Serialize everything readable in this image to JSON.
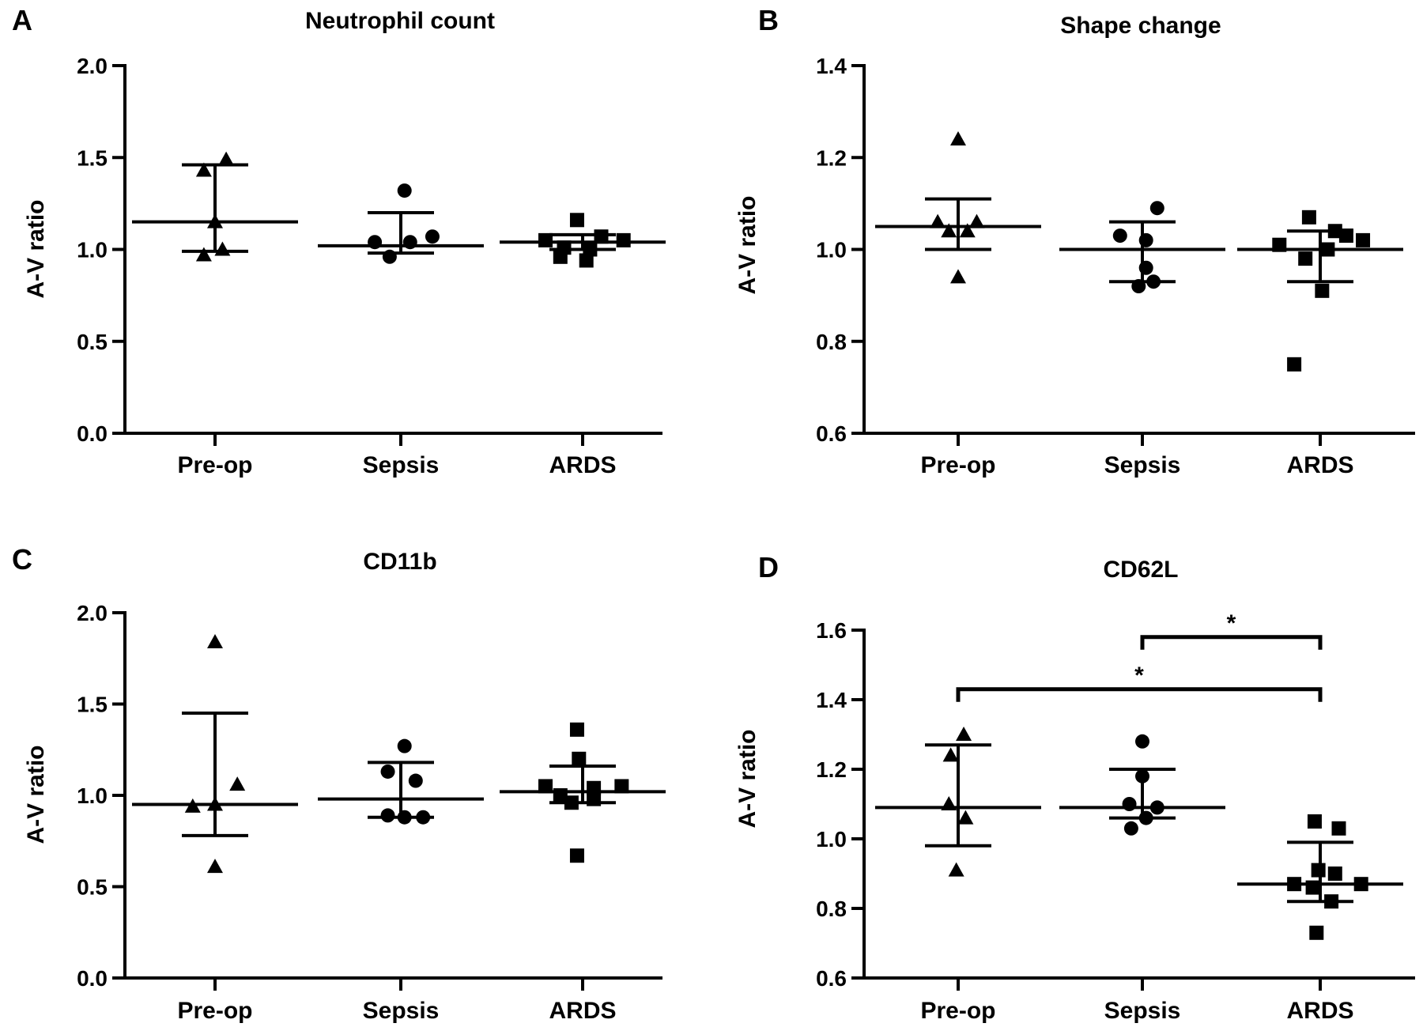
{
  "chart_data": [
    {
      "panel_label": "A",
      "title": "Neutrophil count",
      "type": "scatter",
      "ylabel": "A-V ratio",
      "ylim": [
        0.0,
        2.0
      ],
      "yticks": [
        0.0,
        0.5,
        1.0,
        1.5,
        2.0
      ],
      "ytick_labels": [
        "0.0",
        "0.5",
        "1.0",
        "1.5",
        "2.0"
      ],
      "categories": [
        "Pre-op",
        "Sepsis",
        "ARDS"
      ],
      "series": [
        {
          "category": "Pre-op",
          "marker": "triangle",
          "points": [
            {
              "dx": -0.06,
              "y": 1.43
            },
            {
              "dx": 0.06,
              "y": 1.49
            },
            {
              "dx": 0.0,
              "y": 1.15
            },
            {
              "dx": 0.04,
              "y": 1.0
            },
            {
              "dx": -0.06,
              "y": 0.97
            }
          ],
          "mean": 1.15,
          "err_low": 0.99,
          "err_high": 1.46
        },
        {
          "category": "Sepsis",
          "marker": "circle",
          "points": [
            {
              "dx": 0.02,
              "y": 1.32
            },
            {
              "dx": 0.17,
              "y": 1.07
            },
            {
              "dx": -0.14,
              "y": 1.04
            },
            {
              "dx": 0.05,
              "y": 1.04
            },
            {
              "dx": -0.06,
              "y": 0.96
            }
          ],
          "mean": 1.02,
          "err_low": 0.98,
          "err_high": 1.2
        },
        {
          "category": "ARDS",
          "marker": "square",
          "points": [
            {
              "dx": -0.03,
              "y": 1.16
            },
            {
              "dx": -0.2,
              "y": 1.05
            },
            {
              "dx": 0.1,
              "y": 1.07
            },
            {
              "dx": 0.22,
              "y": 1.05
            },
            {
              "dx": -0.1,
              "y": 1.01
            },
            {
              "dx": 0.04,
              "y": 1.0
            },
            {
              "dx": -0.12,
              "y": 0.96
            },
            {
              "dx": 0.02,
              "y": 0.94
            }
          ],
          "mean": 1.04,
          "err_low": 1.0,
          "err_high": 1.08
        }
      ],
      "significance": []
    },
    {
      "panel_label": "B",
      "title": "Shape change",
      "type": "scatter",
      "ylabel": "A-V ratio",
      "ylim": [
        0.6,
        1.4
      ],
      "yticks": [
        0.6,
        0.8,
        1.0,
        1.2,
        1.4
      ],
      "ytick_labels": [
        "0.6",
        "0.8",
        "1.0",
        "1.2",
        "1.4"
      ],
      "categories": [
        "Pre-op",
        "Sepsis",
        "ARDS"
      ],
      "series": [
        {
          "category": "Pre-op",
          "marker": "triangle",
          "points": [
            {
              "dx": 0.0,
              "y": 1.24
            },
            {
              "dx": -0.11,
              "y": 1.06
            },
            {
              "dx": 0.1,
              "y": 1.06
            },
            {
              "dx": -0.05,
              "y": 1.04
            },
            {
              "dx": 0.05,
              "y": 1.04
            },
            {
              "dx": 0.0,
              "y": 0.94
            }
          ],
          "mean": 1.05,
          "err_low": 1.0,
          "err_high": 1.11
        },
        {
          "category": "Sepsis",
          "marker": "circle",
          "points": [
            {
              "dx": 0.08,
              "y": 1.09
            },
            {
              "dx": -0.12,
              "y": 1.03
            },
            {
              "dx": 0.02,
              "y": 1.02
            },
            {
              "dx": 0.02,
              "y": 0.96
            },
            {
              "dx": -0.02,
              "y": 0.92
            },
            {
              "dx": 0.06,
              "y": 0.93
            }
          ],
          "mean": 1.0,
          "err_low": 0.93,
          "err_high": 1.06
        },
        {
          "category": "ARDS",
          "marker": "square",
          "points": [
            {
              "dx": -0.06,
              "y": 1.07
            },
            {
              "dx": 0.08,
              "y": 1.04
            },
            {
              "dx": 0.14,
              "y": 1.03
            },
            {
              "dx": 0.23,
              "y": 1.02
            },
            {
              "dx": -0.22,
              "y": 1.01
            },
            {
              "dx": 0.04,
              "y": 1.0
            },
            {
              "dx": -0.08,
              "y": 0.98
            },
            {
              "dx": 0.01,
              "y": 0.91
            },
            {
              "dx": -0.14,
              "y": 0.75
            }
          ],
          "mean": 1.0,
          "err_low": 0.93,
          "err_high": 1.04
        }
      ],
      "significance": []
    },
    {
      "panel_label": "C",
      "title": "CD11b",
      "type": "scatter",
      "ylabel": "A-V ratio",
      "ylim": [
        0.0,
        2.0
      ],
      "yticks": [
        0.0,
        0.5,
        1.0,
        1.5,
        2.0
      ],
      "ytick_labels": [
        "0.0",
        "0.5",
        "1.0",
        "1.5",
        "2.0"
      ],
      "categories": [
        "Pre-op",
        "Sepsis",
        "ARDS"
      ],
      "series": [
        {
          "category": "Pre-op",
          "marker": "triangle",
          "points": [
            {
              "dx": 0.0,
              "y": 1.84
            },
            {
              "dx": 0.12,
              "y": 1.06
            },
            {
              "dx": -0.12,
              "y": 0.94
            },
            {
              "dx": 0.0,
              "y": 0.95
            },
            {
              "dx": 0.0,
              "y": 0.61
            }
          ],
          "mean": 0.95,
          "err_low": 0.78,
          "err_high": 1.45
        },
        {
          "category": "Sepsis",
          "marker": "circle",
          "points": [
            {
              "dx": 0.02,
              "y": 1.27
            },
            {
              "dx": -0.07,
              "y": 1.13
            },
            {
              "dx": 0.08,
              "y": 1.08
            },
            {
              "dx": -0.07,
              "y": 0.89
            },
            {
              "dx": 0.02,
              "y": 0.88
            },
            {
              "dx": 0.12,
              "y": 0.88
            }
          ],
          "mean": 0.98,
          "err_low": 0.88,
          "err_high": 1.18
        },
        {
          "category": "ARDS",
          "marker": "square",
          "points": [
            {
              "dx": -0.03,
              "y": 1.36
            },
            {
              "dx": -0.02,
              "y": 1.2
            },
            {
              "dx": -0.2,
              "y": 1.05
            },
            {
              "dx": 0.21,
              "y": 1.05
            },
            {
              "dx": 0.06,
              "y": 1.04
            },
            {
              "dx": -0.12,
              "y": 1.0
            },
            {
              "dx": 0.06,
              "y": 0.98
            },
            {
              "dx": -0.06,
              "y": 0.96
            },
            {
              "dx": -0.03,
              "y": 0.67
            }
          ],
          "mean": 1.02,
          "err_low": 0.96,
          "err_high": 1.16
        }
      ],
      "significance": []
    },
    {
      "panel_label": "D",
      "title": "CD62L",
      "type": "scatter",
      "ylabel": "A-V ratio",
      "ylim": [
        0.6,
        1.65
      ],
      "yticks": [
        0.6,
        0.8,
        1.0,
        1.2,
        1.4,
        1.6
      ],
      "ytick_labels": [
        "0.6",
        "0.8",
        "1.0",
        "1.2",
        "1.4",
        "1.6"
      ],
      "categories": [
        "Pre-op",
        "Sepsis",
        "ARDS"
      ],
      "series": [
        {
          "category": "Pre-op",
          "marker": "triangle",
          "points": [
            {
              "dx": 0.03,
              "y": 1.3
            },
            {
              "dx": -0.04,
              "y": 1.24
            },
            {
              "dx": -0.05,
              "y": 1.1
            },
            {
              "dx": 0.04,
              "y": 1.06
            },
            {
              "dx": -0.01,
              "y": 0.91
            }
          ],
          "mean": 1.09,
          "err_low": 0.98,
          "err_high": 1.27
        },
        {
          "category": "Sepsis",
          "marker": "circle",
          "points": [
            {
              "dx": 0.0,
              "y": 1.28
            },
            {
              "dx": 0.0,
              "y": 1.18
            },
            {
              "dx": -0.07,
              "y": 1.1
            },
            {
              "dx": 0.08,
              "y": 1.09
            },
            {
              "dx": 0.02,
              "y": 1.06
            },
            {
              "dx": -0.06,
              "y": 1.03
            }
          ],
          "mean": 1.09,
          "err_low": 1.06,
          "err_high": 1.2
        },
        {
          "category": "ARDS",
          "marker": "square",
          "points": [
            {
              "dx": -0.03,
              "y": 1.05
            },
            {
              "dx": 0.1,
              "y": 1.03
            },
            {
              "dx": -0.01,
              "y": 0.91
            },
            {
              "dx": 0.08,
              "y": 0.9
            },
            {
              "dx": -0.14,
              "y": 0.87
            },
            {
              "dx": 0.22,
              "y": 0.87
            },
            {
              "dx": -0.04,
              "y": 0.86
            },
            {
              "dx": 0.06,
              "y": 0.82
            },
            {
              "dx": -0.02,
              "y": 0.73
            }
          ],
          "mean": 0.87,
          "err_low": 0.82,
          "err_high": 0.99
        }
      ],
      "significance": [
        {
          "from": "Sepsis",
          "to": "ARDS",
          "y": 1.58,
          "label": "*"
        },
        {
          "from": "Pre-op",
          "to": "ARDS",
          "y": 1.43,
          "label": "*"
        }
      ]
    }
  ]
}
